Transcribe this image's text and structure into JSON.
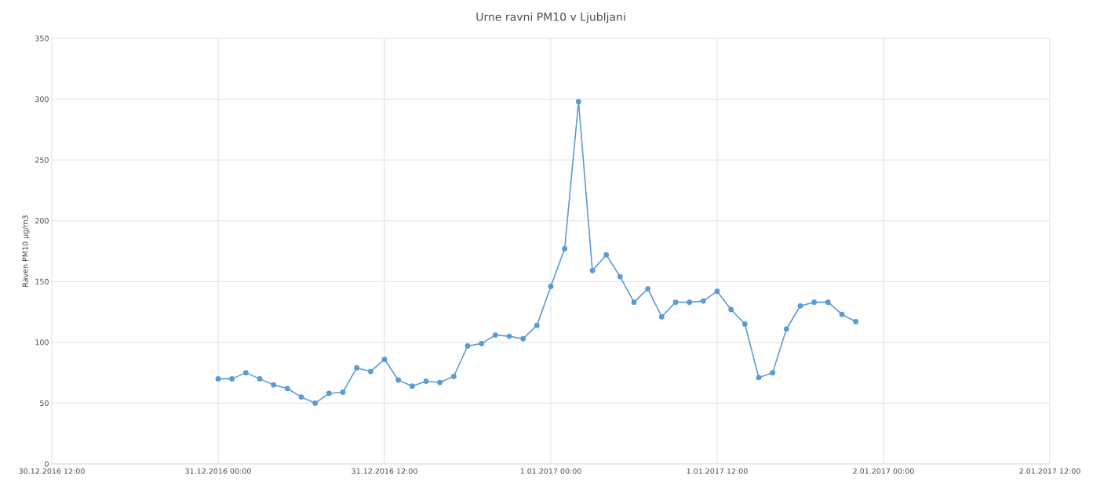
{
  "chart_data": {
    "type": "line",
    "title": "Urne ravni PM10 v Ljubljani",
    "ylabel": "Raven PM10 µg/m3",
    "x": [
      "2016-12-31T00:00",
      "2016-12-31T01:00",
      "2016-12-31T02:00",
      "2016-12-31T03:00",
      "2016-12-31T04:00",
      "2016-12-31T05:00",
      "2016-12-31T06:00",
      "2016-12-31T07:00",
      "2016-12-31T08:00",
      "2016-12-31T09:00",
      "2016-12-31T10:00",
      "2016-12-31T11:00",
      "2016-12-31T12:00",
      "2016-12-31T13:00",
      "2016-12-31T14:00",
      "2016-12-31T15:00",
      "2016-12-31T16:00",
      "2016-12-31T17:00",
      "2016-12-31T18:00",
      "2016-12-31T19:00",
      "2016-12-31T20:00",
      "2016-12-31T21:00",
      "2016-12-31T22:00",
      "2016-12-31T23:00",
      "2017-01-01T00:00",
      "2017-01-01T01:00",
      "2017-01-01T02:00",
      "2017-01-01T03:00",
      "2017-01-01T04:00",
      "2017-01-01T05:00",
      "2017-01-01T06:00",
      "2017-01-01T07:00",
      "2017-01-01T08:00",
      "2017-01-01T09:00",
      "2017-01-01T10:00",
      "2017-01-01T11:00",
      "2017-01-01T12:00",
      "2017-01-01T13:00",
      "2017-01-01T14:00",
      "2017-01-01T15:00",
      "2017-01-01T16:00",
      "2017-01-01T17:00",
      "2017-01-01T18:00",
      "2017-01-01T19:00",
      "2017-01-01T20:00",
      "2017-01-01T21:00",
      "2017-01-01T22:00"
    ],
    "series": [
      {
        "color": "#5b9bd5",
        "values": [
          70,
          70,
          75,
          70,
          65,
          62,
          55,
          50,
          58,
          59,
          79,
          76,
          86,
          69,
          64,
          68,
          67,
          72,
          97,
          99,
          106,
          105,
          103,
          114,
          146,
          177,
          298,
          159,
          172,
          154,
          133,
          144,
          121,
          133,
          133,
          134,
          142,
          127,
          115,
          71,
          75,
          111,
          130,
          133,
          133,
          123,
          117
        ]
      }
    ],
    "xlim": [
      "2016-12-30T12:00",
      "2017-01-02T12:00"
    ],
    "xticks": [
      {
        "value": "2016-12-30T12:00",
        "label": "30.12.2016 12:00"
      },
      {
        "value": "2016-12-31T00:00",
        "label": "31.12.2016 00:00"
      },
      {
        "value": "2016-12-31T12:00",
        "label": "31.12.2016 12:00"
      },
      {
        "value": "2017-01-01T00:00",
        "label": "1.01.2017 00:00"
      },
      {
        "value": "2017-01-01T12:00",
        "label": "1.01.2017 12:00"
      },
      {
        "value": "2017-01-02T00:00",
        "label": "2.01.2017 00:00"
      },
      {
        "value": "2017-01-02T12:00",
        "label": "2.01.2017 12:00"
      }
    ],
    "ylim": [
      0,
      350
    ],
    "yticks": [
      0,
      50,
      100,
      150,
      200,
      250,
      300,
      350
    ],
    "grid": true,
    "legend": false,
    "marker": "circle",
    "line_style": "solid"
  }
}
